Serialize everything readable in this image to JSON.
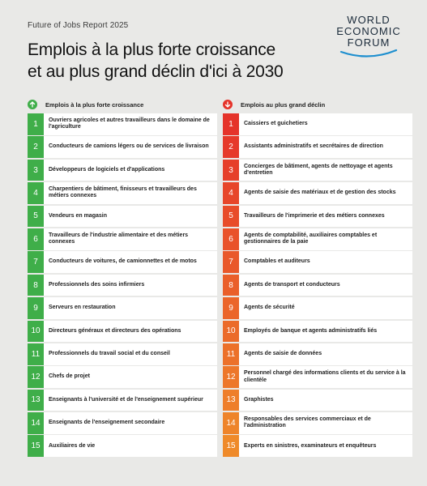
{
  "report_label": "Future of Jobs Report 2025",
  "title_line1": "Emplois à la plus forte croissance",
  "title_line2": "et au plus grand déclin d'ici à 2030",
  "logo": {
    "line1": "WORLD",
    "line2": "ECONOMIC",
    "line3": "FORUM"
  },
  "colors": {
    "growth": "#3fae49",
    "decline": "#e5332a",
    "logo_swoosh": "#1e8fcf"
  },
  "growth": {
    "header": "Emplois à la plus forte croissance",
    "icon": "arrow-up-icon",
    "items": [
      {
        "rank": "1",
        "label": "Ouvriers agricoles et autres travailleurs dans le domaine de l'agriculture"
      },
      {
        "rank": "2",
        "label": "Conducteurs de camions légers ou de services de livraison"
      },
      {
        "rank": "3",
        "label": "Développeurs de logiciels et d'applications"
      },
      {
        "rank": "4",
        "label": "Charpentiers de bâtiment, finisseurs et travailleurs des métiers connexes"
      },
      {
        "rank": "5",
        "label": "Vendeurs en magasin"
      },
      {
        "rank": "6",
        "label": "Travailleurs de l'industrie alimentaire et des métiers connexes"
      },
      {
        "rank": "7",
        "label": "Conducteurs de voitures, de camionnettes et de motos"
      },
      {
        "rank": "8",
        "label": "Professionnels des soins infirmiers"
      },
      {
        "rank": "9",
        "label": "Serveurs en restauration"
      },
      {
        "rank": "10",
        "label": "Directeurs généraux et directeurs des opérations"
      },
      {
        "rank": "11",
        "label": "Professionnels du travail social et du conseil"
      },
      {
        "rank": "12",
        "label": "Chefs de projet"
      },
      {
        "rank": "13",
        "label": "Enseignants à l'université et de l'enseignement supérieur"
      },
      {
        "rank": "14",
        "label": "Enseignants de l'enseignement secondaire"
      },
      {
        "rank": "15",
        "label": "Auxiliaires de vie"
      }
    ]
  },
  "decline": {
    "header": "Emplois au plus grand déclin",
    "icon": "arrow-down-icon",
    "items": [
      {
        "rank": "1",
        "label": "Caissiers et guichetiers"
      },
      {
        "rank": "2",
        "label": "Assistants administratifs et secrétaires de direction"
      },
      {
        "rank": "3",
        "label": "Concierges de bâtiment, agents de nettoyage et agents d'entretien"
      },
      {
        "rank": "4",
        "label": "Agents de saisie des matériaux et de gestion des stocks"
      },
      {
        "rank": "5",
        "label": "Travailleurs de l'imprimerie et des métiers connexes"
      },
      {
        "rank": "6",
        "label": "Agents de comptabilité, auxiliaires comptables et gestionnaires de la paie"
      },
      {
        "rank": "7",
        "label": "Comptables et auditeurs"
      },
      {
        "rank": "8",
        "label": "Agents de transport et conducteurs"
      },
      {
        "rank": "9",
        "label": "Agents de sécurité"
      },
      {
        "rank": "10",
        "label": "Employés de banque et agents administratifs liés"
      },
      {
        "rank": "11",
        "label": "Agents de saisie de données"
      },
      {
        "rank": "12",
        "label": "Personnel chargé des informations clients et du service à la clientèle"
      },
      {
        "rank": "13",
        "label": "Graphistes"
      },
      {
        "rank": "14",
        "label": "Responsables des services commerciaux et de l'administration"
      },
      {
        "rank": "15",
        "label": "Experts en sinistres, examinateurs et enquêteurs"
      }
    ]
  }
}
